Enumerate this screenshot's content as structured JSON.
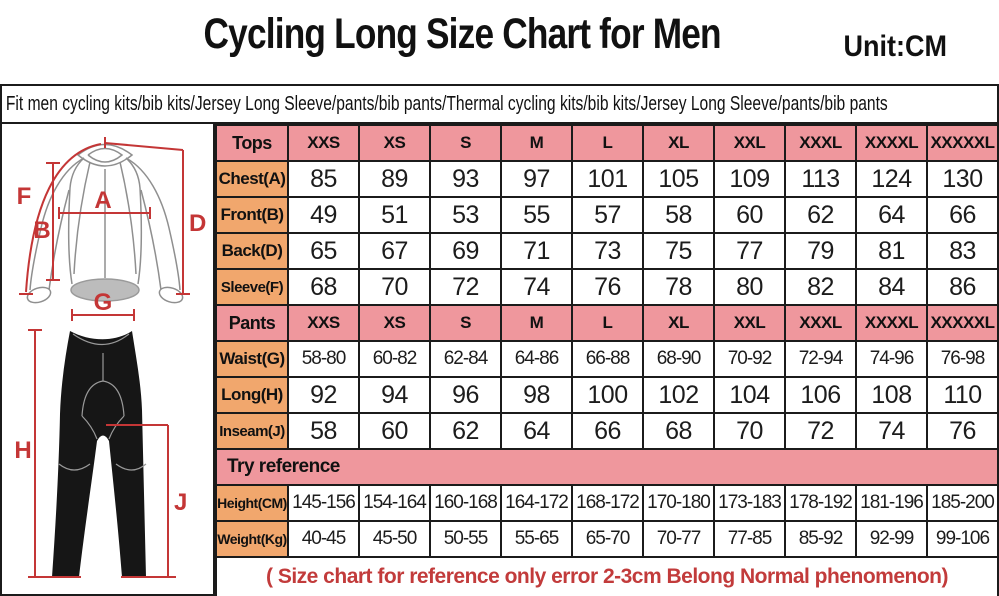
{
  "title": "Cycling Long Size Chart for Men",
  "unit": "Unit:CM",
  "fit_line": "Fit men cycling kits/bib kits/Jersey Long Sleeve/pants/bib pants/Thermal cycling kits/bib kits/Jersey Long Sleeve/pants/bib pants",
  "note": "( Size chart for reference only  error 2-3cm  Belong Normal phenomenon)",
  "diagram": {
    "labels": {
      "A": "A",
      "B": "B",
      "D": "D",
      "F": "F",
      "G": "G",
      "H": "H",
      "J": "J"
    }
  },
  "colors": {
    "header_pink": "#ef979d",
    "label_orange": "#f1a76d",
    "note_red": "#c23b3b",
    "diagram_red": "#c43636",
    "pants_black": "#161616",
    "border_black": "#1b1b1b"
  },
  "chart_data": {
    "type": "table",
    "sizes": [
      "XXS",
      "XS",
      "S",
      "M",
      "L",
      "XL",
      "XXL",
      "XXXL",
      "XXXXL",
      "XXXXXL"
    ],
    "sections": [
      {
        "header": "Tops",
        "full_width": false,
        "rows": [
          {
            "label": "Chest(A)",
            "values": [
              "85",
              "89",
              "93",
              "97",
              "101",
              "105",
              "109",
              "113",
              "124",
              "130"
            ]
          },
          {
            "label": "Front(B)",
            "values": [
              "49",
              "51",
              "53",
              "55",
              "57",
              "58",
              "60",
              "62",
              "64",
              "66"
            ]
          },
          {
            "label": "Back(D)",
            "values": [
              "65",
              "67",
              "69",
              "71",
              "73",
              "75",
              "77",
              "79",
              "81",
              "83"
            ]
          },
          {
            "label": "Sleeve(F)",
            "values": [
              "68",
              "70",
              "72",
              "74",
              "76",
              "78",
              "80",
              "82",
              "84",
              "86"
            ]
          }
        ]
      },
      {
        "header": "Pants",
        "full_width": false,
        "rows": [
          {
            "label": "Waist(G)",
            "values": [
              "58-80",
              "60-82",
              "62-84",
              "64-86",
              "66-88",
              "68-90",
              "70-92",
              "72-94",
              "74-96",
              "76-98"
            ]
          },
          {
            "label": "Long(H)",
            "values": [
              "92",
              "94",
              "96",
              "98",
              "100",
              "102",
              "104",
              "106",
              "108",
              "110"
            ]
          },
          {
            "label": "Inseam(J)",
            "values": [
              "58",
              "60",
              "62",
              "64",
              "66",
              "68",
              "70",
              "72",
              "74",
              "76"
            ]
          }
        ]
      },
      {
        "header": "Try reference",
        "full_width": true,
        "rows": [
          {
            "label": "Height(CM)",
            "values": [
              "145-156",
              "154-164",
              "160-168",
              "164-172",
              "168-172",
              "170-180",
              "173-183",
              "178-192",
              "181-196",
              "185-200"
            ]
          },
          {
            "label": "Weight(Kg)",
            "values": [
              "40-45",
              "45-50",
              "50-55",
              "55-65",
              "65-70",
              "70-77",
              "77-85",
              "85-92",
              "92-99",
              "99-106"
            ]
          }
        ]
      }
    ]
  }
}
